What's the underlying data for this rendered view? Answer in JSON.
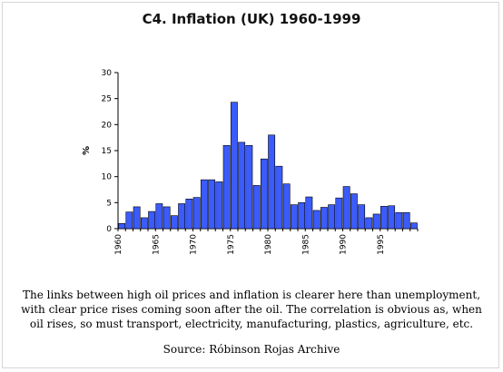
{
  "chart_data": {
    "type": "bar",
    "title": "C4. Inflation (UK) 1960-1999",
    "xlabel": "",
    "ylabel": "%",
    "ylim": [
      0,
      30
    ],
    "yticks": [
      0,
      5,
      10,
      15,
      20,
      25,
      30
    ],
    "xtick_labels": [
      "1960",
      "1965",
      "1970",
      "1975",
      "1980",
      "1985",
      "1990",
      "1995"
    ],
    "bar_color": "#3b5bfa",
    "grid": false,
    "categories": [
      "1960",
      "1961",
      "1962",
      "1963",
      "1964",
      "1965",
      "1966",
      "1967",
      "1968",
      "1969",
      "1970",
      "1971",
      "1972",
      "1973",
      "1974",
      "1975",
      "1976",
      "1977",
      "1978",
      "1979",
      "1980",
      "1981",
      "1982",
      "1983",
      "1984",
      "1985",
      "1986",
      "1987",
      "1988",
      "1989",
      "1990",
      "1991",
      "1992",
      "1993",
      "1994",
      "1995",
      "1996",
      "1997",
      "1998",
      "1999"
    ],
    "values": [
      1.0,
      3.2,
      4.2,
      2.1,
      3.3,
      4.8,
      4.2,
      2.5,
      4.8,
      5.7,
      6.0,
      9.4,
      9.4,
      9.0,
      16.0,
      24.3,
      16.6,
      16.0,
      8.3,
      13.4,
      18.0,
      12.0,
      8.6,
      4.6,
      5.0,
      6.1,
      3.5,
      4.1,
      4.6,
      5.9,
      8.1,
      6.7,
      4.6,
      2.1,
      2.8,
      4.3,
      4.4,
      3.1,
      3.1,
      1.1
    ]
  },
  "caption": "The links between high oil prices and inflation is clearer here than unemployment, with clear price rises coming soon after the oil. The correlation is obvious as, when oil rises, so must transport, electricity, manufacturing, plastics, agriculture, etc.",
  "source": "Source: Róbinson Rojas Archive"
}
